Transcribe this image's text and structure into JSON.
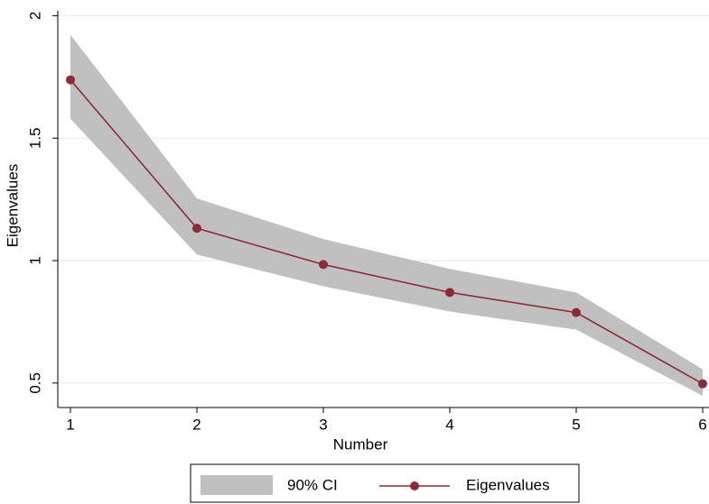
{
  "chart_data": {
    "type": "line",
    "x": [
      1,
      2,
      3,
      4,
      5,
      6
    ],
    "xlabel": "Number",
    "ylabel": "Eigenvalues",
    "xlim": [
      0.9,
      6.05
    ],
    "xticks": [
      1,
      2,
      3,
      4,
      5,
      6
    ],
    "ylim": [
      0.4,
      2.02
    ],
    "yticks": [
      0.5,
      1,
      1.5,
      2
    ],
    "grid": true,
    "legend": "bottom",
    "band": {
      "name": "90% CI",
      "color": "#c0c0c0",
      "lower": [
        1.579,
        1.025,
        0.895,
        0.792,
        0.718,
        0.448
      ],
      "upper": [
        1.922,
        1.254,
        1.088,
        0.966,
        0.87,
        0.556
      ]
    },
    "series": [
      {
        "name": "Eigenvalues",
        "color": "#8c2b37",
        "values": [
          1.738,
          1.132,
          0.984,
          0.87,
          0.788,
          0.497
        ]
      }
    ]
  }
}
